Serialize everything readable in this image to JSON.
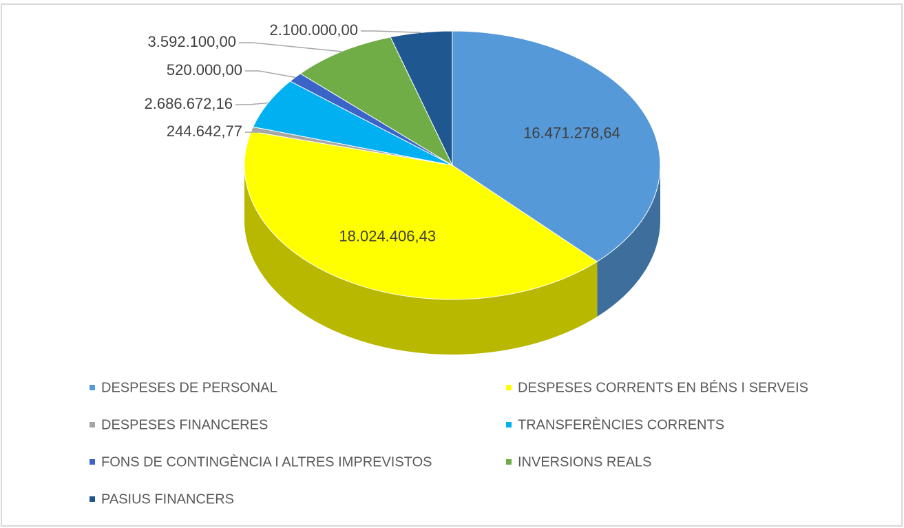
{
  "chart_data": {
    "type": "pie3d",
    "categories": [
      "DESPESES DE PERSONAL",
      "DESPESES CORRENTS EN BÉNS I SERVEIS",
      "DESPESES FINANCERES",
      "TRANSFERÈNCIES CORRENTS",
      "FONS DE CONTINGÈNCIA I ALTRES IMPREVISTOS",
      "INVERSIONS REALS",
      "PASIUS FINANCERS"
    ],
    "values": [
      16471278.64,
      18024406.43,
      244642.77,
      2686672.16,
      520000,
      3592100,
      2100000
    ],
    "value_labels": [
      "16.471.278,64",
      "18.024.406,43",
      "244.642,77",
      "2.686.672,16",
      "520.000,00",
      "3.592.100,00",
      "2.100.000,00"
    ],
    "colors": [
      "#5599d8",
      "#ffff00",
      "#a5a5a5",
      "#00b0f0",
      "#3a64c8",
      "#70ad47",
      "#1f5791"
    ],
    "legend": "bottom"
  }
}
